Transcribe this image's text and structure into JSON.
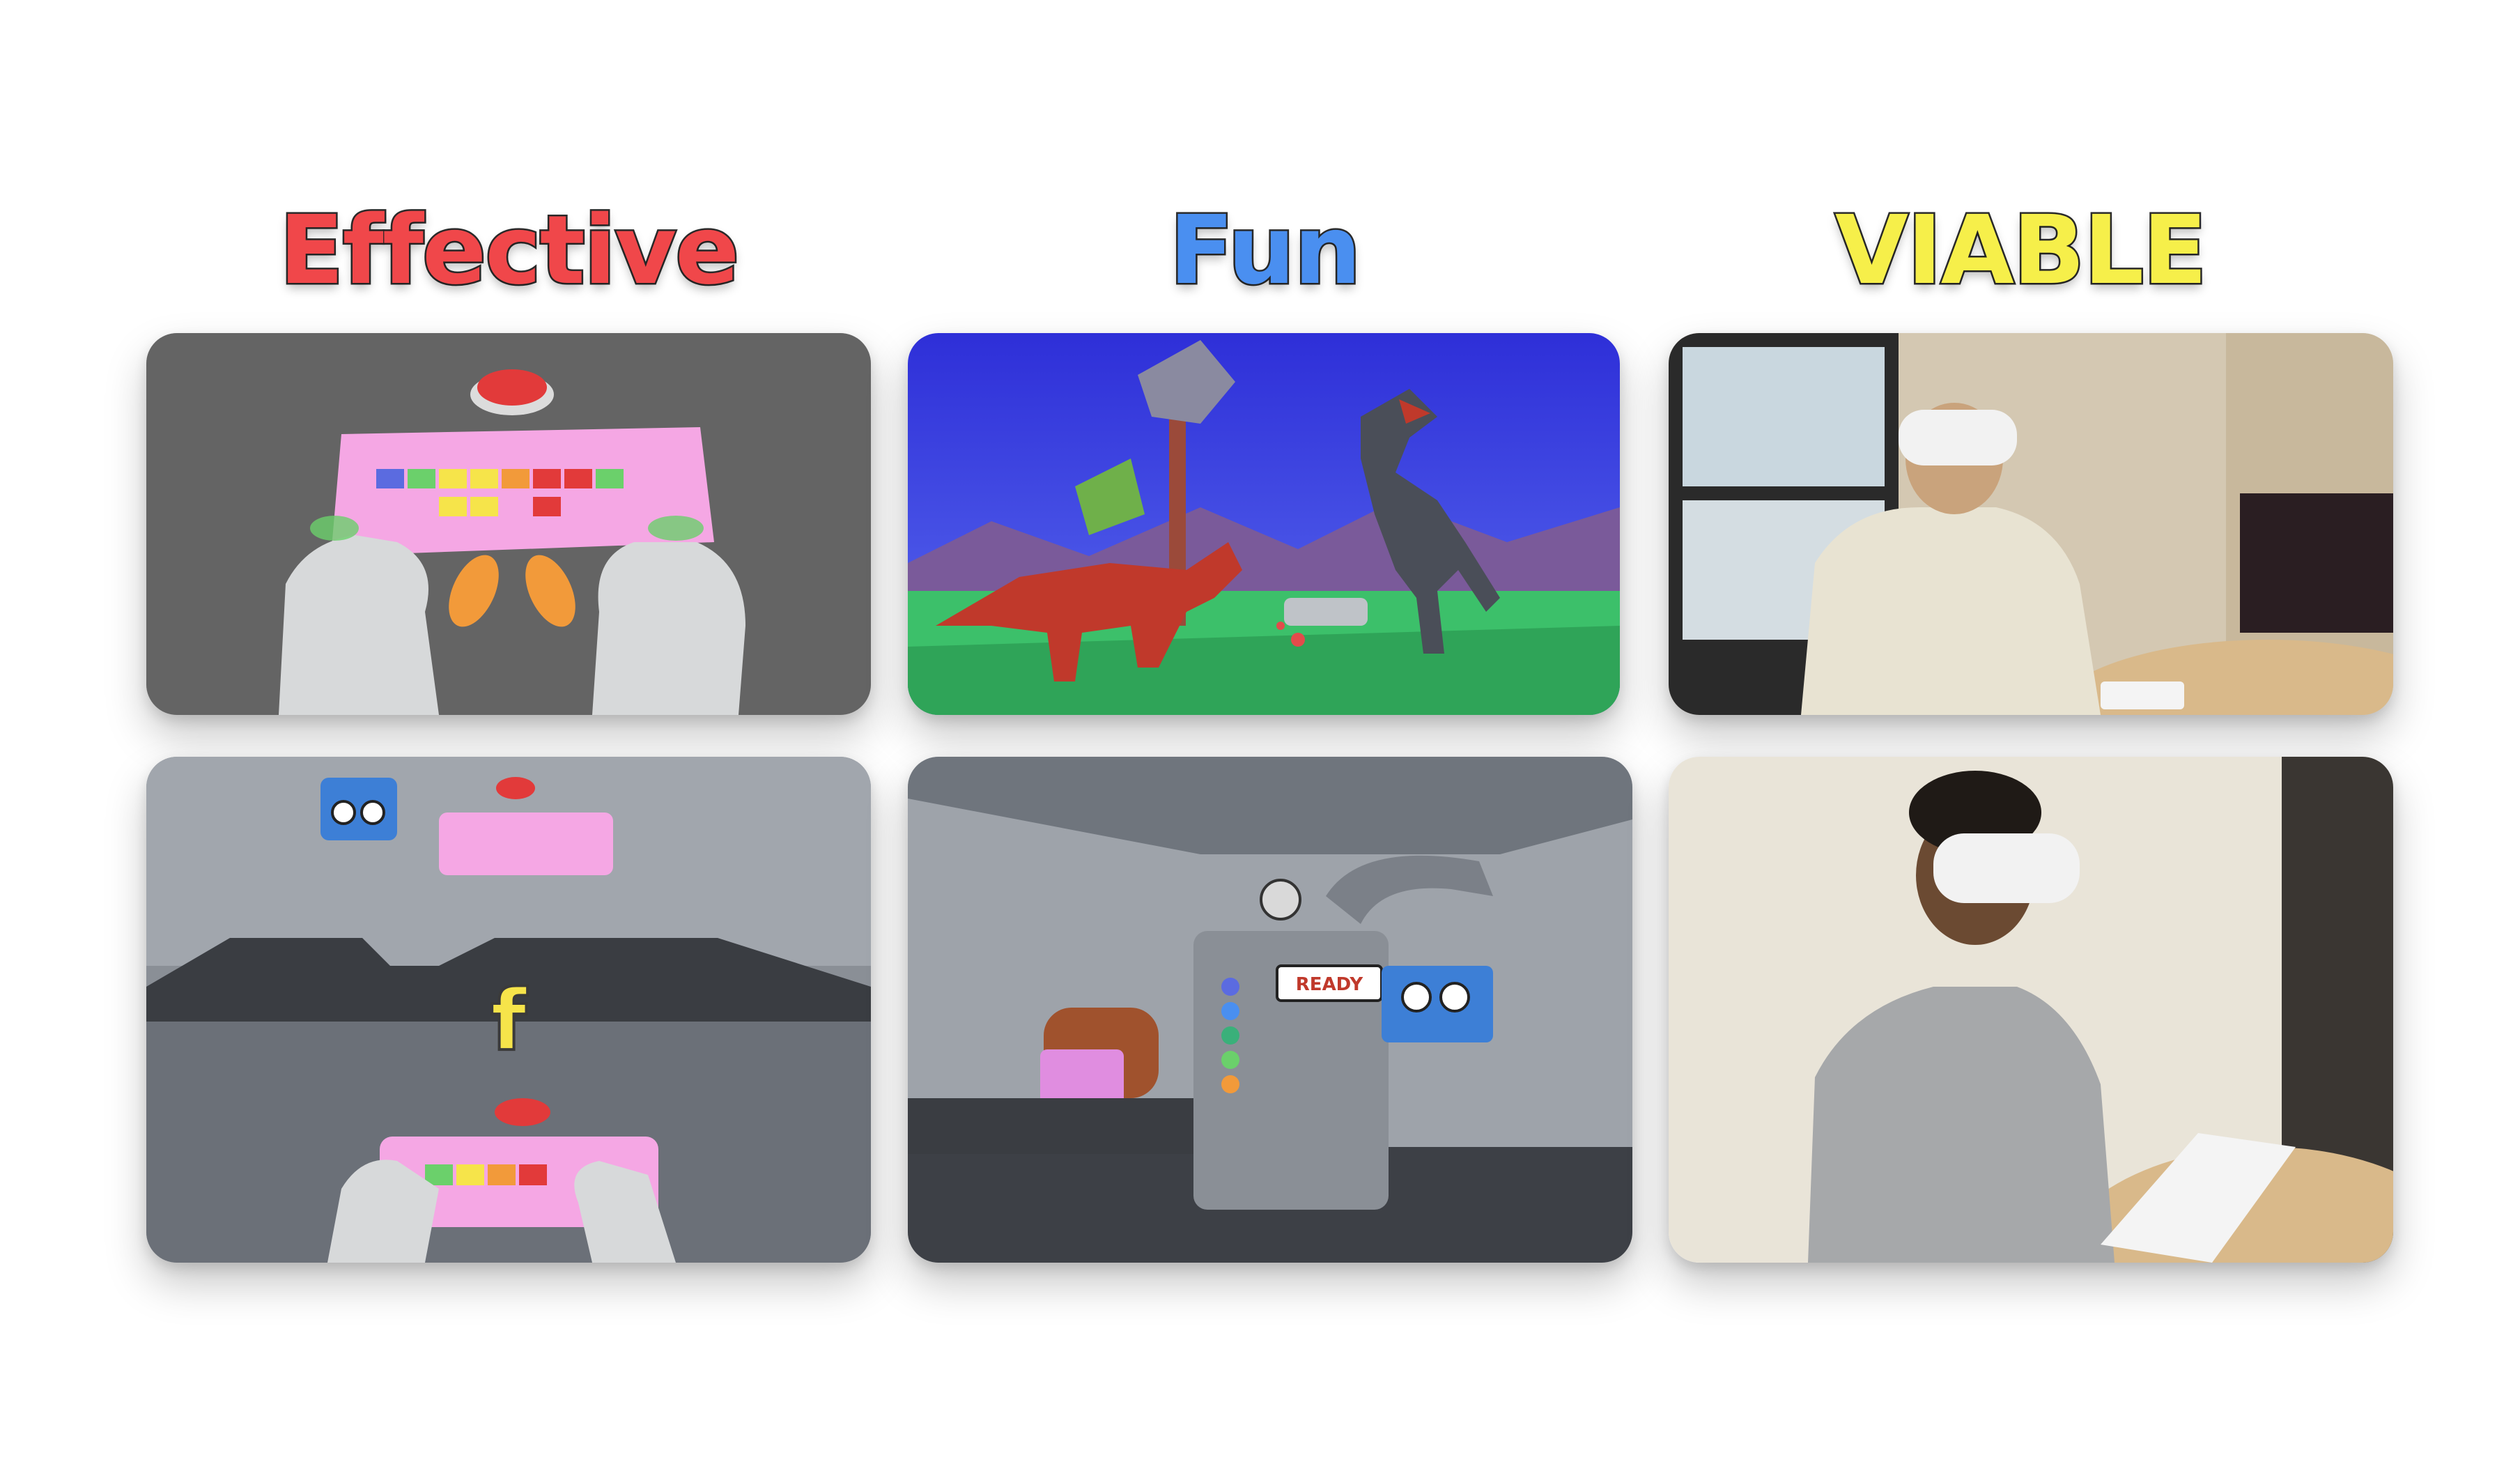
{
  "headings": {
    "effective": "Effective",
    "fun": "Fun",
    "viable": "VIABLE"
  },
  "colors": {
    "effective": "#f0474a",
    "fun": "#4a8ff0",
    "viable": "#f6ef4a",
    "outline": "#2b2b2b"
  },
  "tiles": {
    "typing_letter": "f",
    "machine_sign": "READY"
  }
}
